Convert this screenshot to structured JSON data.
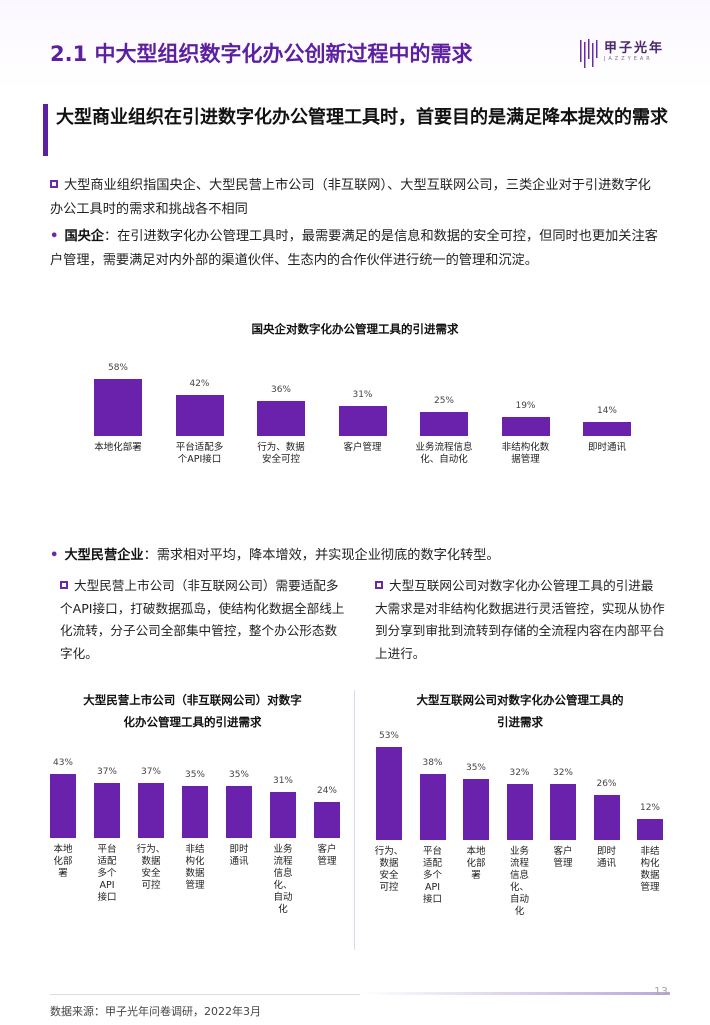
{
  "header": {
    "title": "2.1 中大型组织数字化办公创新过程中的需求",
    "logo_text": "甲子光年",
    "logo_sub": "JAZZYEAR"
  },
  "subheading": "大型商业组织在引进数字化办公管理工具时，首要目的是满足降本提效的需求",
  "intro": "大型商业组织指国央企、大型民营上市公司（非互联网）、大型互联网公司，三类企业对于引进数字化办公工具时的需求和挑战各不相同",
  "soe": {
    "label": "国央企",
    "text": "：在引进数字化办公管理工具时，最需要满足的是信息和数据的安全可控，但同时也更加关注客户管理，需要满足对内外部的渠道伙伴、生态内的合作伙伴进行统一的管理和沉淀。"
  },
  "private": {
    "label": "大型民营企业",
    "text": "：需求相对平均，降本增效，并实现企业彻底的数字化转型。"
  },
  "private_listed_note": "大型民营上市公司（非互联网公司）需要适配多个API接口，打破数据孤岛，使结构化数据全部线上化流转，分子公司全部集中管控，整个办公形态数字化。",
  "internet_note": "大型互联网公司对数字化办公管理工具的引进最大需求是对非结构化数据进行灵活管控，实现从协作到分享到审批到流转到存储的全流程内容在内部平台上进行。",
  "footer": {
    "source": "数据来源：甲子光年问卷调研，2022年3月",
    "page": "13"
  },
  "colors": {
    "accent": "#5c1fa0",
    "bar": "#6a22ad"
  },
  "chart_data": [
    {
      "type": "bar",
      "title": "国央企对数字化办公管理工具的引进需求",
      "categories": [
        "本地化部署",
        "平台适配多个API接口",
        "行为、数据安全可控",
        "客户管理",
        "业务流程信息化、自动化",
        "非结构化数据管理",
        "即时通讯"
      ],
      "category_lines": [
        [
          "本地化部署"
        ],
        [
          "平台适配多",
          "个API接口"
        ],
        [
          "行为、数据",
          "安全可控"
        ],
        [
          "客户管理"
        ],
        [
          "业务流程信息",
          "化、自动化"
        ],
        [
          "非结构化数",
          "据管理"
        ],
        [
          "即时通讯"
        ]
      ],
      "values": [
        58,
        42,
        36,
        31,
        25,
        19,
        14
      ],
      "labels": [
        "58%",
        "42%",
        "36%",
        "31%",
        "25%",
        "19%",
        "14%"
      ],
      "ylim": [
        0,
        100
      ]
    },
    {
      "type": "bar",
      "title": "大型民营上市公司（非互联网公司）对数字化办公管理工具的引进需求",
      "title_lines": [
        "大型民营上市公司（非互联网公司）对数字",
        "化办公管理工具的引进需求"
      ],
      "categories": [
        "本地化部署",
        "平台适配多个API接口",
        "行为、数据安全可控",
        "非结构化数据管理",
        "即时通讯",
        "业务流程信息化、自动化",
        "客户管理"
      ],
      "category_lines": [
        [
          "本地",
          "化部",
          "署"
        ],
        [
          "平台",
          "适配",
          "多个",
          "API",
          "接口"
        ],
        [
          "行为、",
          "数据",
          "安全",
          "可控"
        ],
        [
          "非结",
          "构化",
          "数据",
          "管理"
        ],
        [
          "即时",
          "通讯"
        ],
        [
          "业务",
          "流程",
          "信息",
          "化、",
          "自动",
          "化"
        ],
        [
          "客户",
          "管理"
        ]
      ],
      "values": [
        43,
        37,
        37,
        35,
        35,
        31,
        24
      ],
      "labels": [
        "43%",
        "37%",
        "37%",
        "35%",
        "35%",
        "31%",
        "24%"
      ],
      "ylim": [
        0,
        100
      ]
    },
    {
      "type": "bar",
      "title": "大型互联网公司对数字化办公管理工具的引进需求",
      "title_lines": [
        "大型互联网公司对数字化办公管理工具的",
        "引进需求"
      ],
      "categories": [
        "行为、数据安全可控",
        "平台适配多个API接口",
        "本地化部署",
        "业务流程信息化、自动化",
        "客户管理",
        "即时通讯",
        "非结构化数据管理"
      ],
      "category_lines": [
        [
          "行为、",
          "数据",
          "安全",
          "可控"
        ],
        [
          "平台",
          "适配",
          "多个",
          "API",
          "接口"
        ],
        [
          "本地",
          "化部",
          "署"
        ],
        [
          "业务",
          "流程",
          "信息",
          "化、",
          "自动",
          "化"
        ],
        [
          "客户",
          "管理"
        ],
        [
          "即时",
          "通讯"
        ],
        [
          "非结",
          "构化",
          "数据",
          "管理"
        ]
      ],
      "values": [
        53,
        38,
        35,
        32,
        32,
        26,
        12
      ],
      "labels": [
        "53%",
        "38%",
        "35%",
        "32%",
        "32%",
        "26%",
        "12%"
      ],
      "ylim": [
        0,
        100
      ]
    }
  ]
}
